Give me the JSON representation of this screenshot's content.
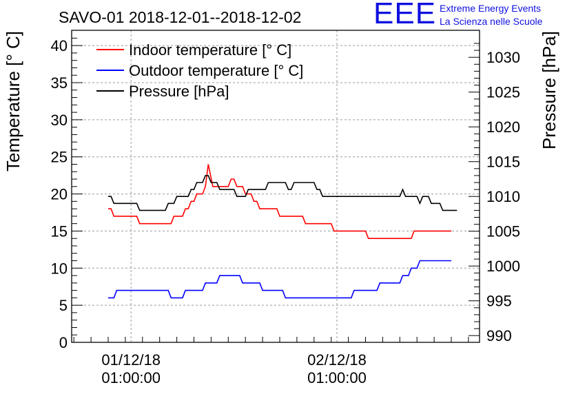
{
  "logo": {
    "letters": "EEE",
    "line1": "Extreme Energy Events",
    "line2": "La Scienza nelle Scuole"
  },
  "chart_data": {
    "type": "line",
    "title": "SAVO-01 2018-12-01--2018-12-02",
    "ylabel": "Temperature [° C]",
    "y2label": "Pressure [hPa]",
    "ylim": [
      0,
      42
    ],
    "y2lim": [
      987,
      1033
    ],
    "yticks": [
      "0",
      "5",
      "10",
      "15",
      "20",
      "25",
      "30",
      "35",
      "40"
    ],
    "y2ticks": [
      "990",
      "995",
      "1000",
      "1005",
      "1010",
      "1015",
      "1020",
      "1025",
      "1030"
    ],
    "xticks": [
      {
        "date": "01/12/18",
        "time": "01:00:00"
      },
      {
        "date": "02/12/18",
        "time": "01:00:00"
      }
    ],
    "grid": true,
    "legend_placement": "top-left",
    "series": [
      {
        "name": "Indoor temperature [° C]",
        "axis": "left",
        "color": "#ff0000",
        "points": [
          [
            0,
            18
          ],
          [
            0.5,
            18
          ],
          [
            1,
            17
          ],
          [
            5,
            17
          ],
          [
            5.5,
            16
          ],
          [
            11,
            16
          ],
          [
            11.5,
            17
          ],
          [
            13,
            17
          ],
          [
            13.5,
            18
          ],
          [
            14,
            18
          ],
          [
            14.5,
            19
          ],
          [
            15,
            19
          ],
          [
            15.5,
            20
          ],
          [
            16.5,
            20
          ],
          [
            17,
            21
          ],
          [
            17.5,
            24
          ],
          [
            18.3,
            21
          ],
          [
            21,
            21
          ],
          [
            21.5,
            22
          ],
          [
            22,
            22
          ],
          [
            22.5,
            21
          ],
          [
            23.5,
            21
          ],
          [
            24,
            20
          ],
          [
            25,
            20
          ],
          [
            25.5,
            19
          ],
          [
            26,
            19
          ],
          [
            26.5,
            18
          ],
          [
            29.5,
            18
          ],
          [
            30,
            17
          ],
          [
            34,
            17
          ],
          [
            34.5,
            16
          ],
          [
            39,
            16
          ],
          [
            39.5,
            15
          ],
          [
            45,
            15
          ],
          [
            45.5,
            14
          ],
          [
            53,
            14
          ],
          [
            53.5,
            15
          ],
          [
            60,
            15
          ]
        ]
      },
      {
        "name": "Outdoor temperature [° C]",
        "axis": "left",
        "color": "#0000ff",
        "points": [
          [
            0,
            6
          ],
          [
            1,
            6
          ],
          [
            1.5,
            7
          ],
          [
            10.5,
            7
          ],
          [
            11,
            6
          ],
          [
            13,
            6
          ],
          [
            13.5,
            7
          ],
          [
            16.5,
            7
          ],
          [
            17,
            8
          ],
          [
            19,
            8
          ],
          [
            19.5,
            9
          ],
          [
            23,
            9
          ],
          [
            23.5,
            8
          ],
          [
            26.5,
            8
          ],
          [
            27,
            7
          ],
          [
            30.5,
            7
          ],
          [
            31,
            6
          ],
          [
            42.5,
            6
          ],
          [
            43,
            7
          ],
          [
            47,
            7
          ],
          [
            47.5,
            8
          ],
          [
            51,
            8
          ],
          [
            51.5,
            9
          ],
          [
            52.5,
            9
          ],
          [
            53,
            10
          ],
          [
            54,
            10
          ],
          [
            54.5,
            11
          ],
          [
            60,
            11
          ]
        ]
      },
      {
        "name": "Pressure [hPa]",
        "axis": "right",
        "color": "#000000",
        "points": [
          [
            0,
            1010
          ],
          [
            0.5,
            1010
          ],
          [
            1,
            1009
          ],
          [
            5,
            1009
          ],
          [
            5.5,
            1008
          ],
          [
            10,
            1008
          ],
          [
            10.5,
            1009
          ],
          [
            11.5,
            1009
          ],
          [
            12,
            1010
          ],
          [
            14,
            1010
          ],
          [
            14.5,
            1011
          ],
          [
            15,
            1011
          ],
          [
            15.5,
            1012
          ],
          [
            16.5,
            1012
          ],
          [
            17,
            1013
          ],
          [
            17.5,
            1013
          ],
          [
            18,
            1012
          ],
          [
            19,
            1012
          ],
          [
            19.5,
            1011
          ],
          [
            22,
            1011
          ],
          [
            22.5,
            1010
          ],
          [
            24,
            1010
          ],
          [
            24.5,
            1011
          ],
          [
            27.5,
            1011
          ],
          [
            28,
            1012
          ],
          [
            31,
            1012
          ],
          [
            31.5,
            1011
          ],
          [
            32,
            1011
          ],
          [
            32.5,
            1012
          ],
          [
            36,
            1012
          ],
          [
            36.5,
            1011
          ],
          [
            37,
            1011
          ],
          [
            37.5,
            1010
          ],
          [
            51,
            1010
          ],
          [
            51.5,
            1011
          ],
          [
            52,
            1010
          ],
          [
            54,
            1010
          ],
          [
            54.5,
            1009
          ],
          [
            55,
            1010
          ],
          [
            56,
            1010
          ],
          [
            56.5,
            1009
          ],
          [
            58,
            1009
          ],
          [
            58.5,
            1008
          ],
          [
            61,
            1008
          ]
        ]
      }
    ]
  }
}
